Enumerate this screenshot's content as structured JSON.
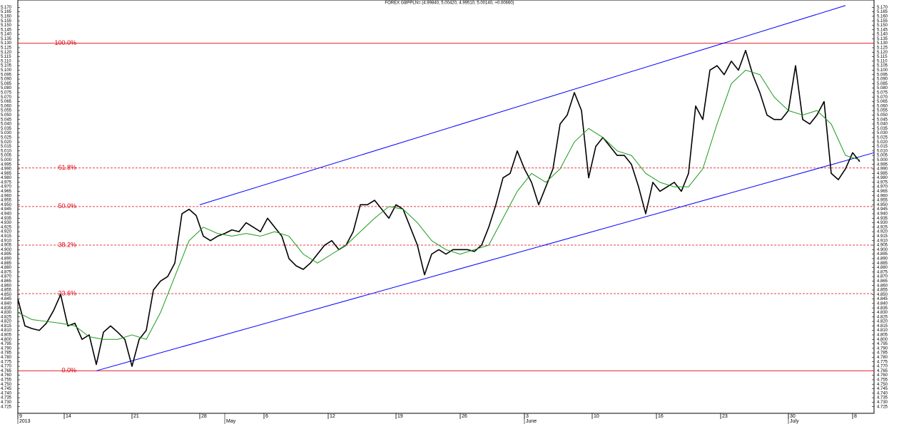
{
  "chart_data": {
    "type": "line",
    "title": "FOREX GBPPLN= (4.99840, 5.00420, 4.99510, 5.00140, +0.00660)",
    "xlim": [
      0,
      240
    ],
    "ylim": [
      4.72,
      5.175
    ],
    "xticks": [
      {
        "value": 0,
        "label": "9"
      },
      {
        "value": 13,
        "label": "14"
      },
      {
        "value": 32,
        "label": "21"
      },
      {
        "value": 51,
        "label": "28"
      },
      {
        "value": 69,
        "label": "6"
      },
      {
        "value": 87,
        "label": "12"
      },
      {
        "value": 106,
        "label": "19"
      },
      {
        "value": 124,
        "label": "26"
      },
      {
        "value": 142,
        "label": "3"
      },
      {
        "value": 161,
        "label": "10"
      },
      {
        "value": 179,
        "label": "16"
      },
      {
        "value": 197,
        "label": "23"
      },
      {
        "value": 216,
        "label": "30"
      },
      {
        "value": 234,
        "label": "8"
      }
    ],
    "period_labels": [
      {
        "value": 0,
        "label": "2013"
      },
      {
        "value": 58,
        "label": "May"
      },
      {
        "value": 142,
        "label": "June"
      },
      {
        "value": 216,
        "label": "July"
      }
    ],
    "yticks": [
      {
        "value": 4.725,
        "label": "4.725"
      },
      {
        "value": 4.73,
        "label": "4.730"
      },
      {
        "value": 4.735,
        "label": "4.735"
      },
      {
        "value": 4.74,
        "label": "4.740"
      },
      {
        "value": 4.745,
        "label": "4.745"
      },
      {
        "value": 4.75,
        "label": "4.750"
      },
      {
        "value": 4.755,
        "label": "4.755"
      },
      {
        "value": 4.76,
        "label": "4.760"
      },
      {
        "value": 4.765,
        "label": "4.765"
      },
      {
        "value": 4.77,
        "label": "4.770"
      },
      {
        "value": 4.775,
        "label": "4.775"
      },
      {
        "value": 4.78,
        "label": "4.780"
      },
      {
        "value": 4.785,
        "label": "4.785"
      },
      {
        "value": 4.79,
        "label": "4.790"
      },
      {
        "value": 4.795,
        "label": "4.795"
      },
      {
        "value": 4.8,
        "label": "4.800"
      },
      {
        "value": 4.805,
        "label": "4.805"
      },
      {
        "value": 4.81,
        "label": "4.810"
      },
      {
        "value": 4.815,
        "label": "4.815"
      },
      {
        "value": 4.82,
        "label": "4.820"
      },
      {
        "value": 4.825,
        "label": "4.825"
      },
      {
        "value": 4.83,
        "label": "4.830"
      },
      {
        "value": 4.835,
        "label": "4.835"
      },
      {
        "value": 4.84,
        "label": "4.840"
      },
      {
        "value": 4.845,
        "label": "4.845"
      },
      {
        "value": 4.85,
        "label": "4.850"
      },
      {
        "value": 4.855,
        "label": "4.855"
      },
      {
        "value": 4.86,
        "label": "4.860"
      },
      {
        "value": 4.865,
        "label": "4.865"
      },
      {
        "value": 4.87,
        "label": "4.870"
      },
      {
        "value": 4.875,
        "label": "4.875"
      },
      {
        "value": 4.88,
        "label": "4.880"
      },
      {
        "value": 4.885,
        "label": "4.885"
      },
      {
        "value": 4.89,
        "label": "4.890"
      },
      {
        "value": 4.895,
        "label": "4.895"
      },
      {
        "value": 4.9,
        "label": "4.900"
      },
      {
        "value": 4.905,
        "label": "4.905"
      },
      {
        "value": 4.91,
        "label": "4.910"
      },
      {
        "value": 4.915,
        "label": "4.915"
      },
      {
        "value": 4.92,
        "label": "4.920"
      },
      {
        "value": 4.925,
        "label": "4.925"
      },
      {
        "value": 4.93,
        "label": "4.930"
      },
      {
        "value": 4.935,
        "label": "4.935"
      },
      {
        "value": 4.94,
        "label": "4.940"
      },
      {
        "value": 4.945,
        "label": "4.945"
      },
      {
        "value": 4.95,
        "label": "4.950"
      },
      {
        "value": 4.955,
        "label": "4.955"
      },
      {
        "value": 4.96,
        "label": "4.960"
      },
      {
        "value": 4.965,
        "label": "4.965"
      },
      {
        "value": 4.97,
        "label": "4.970"
      },
      {
        "value": 4.975,
        "label": "4.975"
      },
      {
        "value": 4.98,
        "label": "4.980"
      },
      {
        "value": 4.985,
        "label": "4.985"
      },
      {
        "value": 4.99,
        "label": "4.990"
      },
      {
        "value": 4.995,
        "label": "4.995"
      },
      {
        "value": 5,
        "label": "5.000"
      },
      {
        "value": 5.005,
        "label": "5.005"
      },
      {
        "value": 5.01,
        "label": "5.010"
      },
      {
        "value": 5.015,
        "label": "5.015"
      },
      {
        "value": 5.02,
        "label": "5.020"
      },
      {
        "value": 5.025,
        "label": "5.025"
      },
      {
        "value": 5.03,
        "label": "5.030"
      },
      {
        "value": 5.035,
        "label": "5.035"
      },
      {
        "value": 5.04,
        "label": "5.040"
      },
      {
        "value": 5.045,
        "label": "5.045"
      },
      {
        "value": 5.05,
        "label": "5.050"
      },
      {
        "value": 5.055,
        "label": "5.055"
      },
      {
        "value": 5.06,
        "label": "5.060"
      },
      {
        "value": 5.065,
        "label": "5.065"
      },
      {
        "value": 5.07,
        "label": "5.070"
      },
      {
        "value": 5.075,
        "label": "5.075"
      },
      {
        "value": 5.08,
        "label": "5.080"
      },
      {
        "value": 5.085,
        "label": "5.085"
      },
      {
        "value": 5.09,
        "label": "5.090"
      },
      {
        "value": 5.095,
        "label": "5.095"
      },
      {
        "value": 5.1,
        "label": "5.100"
      },
      {
        "value": 5.105,
        "label": "5.105"
      },
      {
        "value": 5.11,
        "label": "5.110"
      },
      {
        "value": 5.115,
        "label": "5.115"
      },
      {
        "value": 5.12,
        "label": "5.120"
      },
      {
        "value": 5.125,
        "label": "5.125"
      },
      {
        "value": 5.13,
        "label": "5.130"
      },
      {
        "value": 5.135,
        "label": "5.135"
      },
      {
        "value": 5.14,
        "label": "5.140"
      },
      {
        "value": 5.145,
        "label": "5.145"
      },
      {
        "value": 5.15,
        "label": "5.150"
      },
      {
        "value": 5.155,
        "label": "5.155"
      },
      {
        "value": 5.16,
        "label": "5.160"
      },
      {
        "value": 5.165,
        "label": "5.165"
      },
      {
        "value": 5.17,
        "label": "5.170"
      }
    ],
    "fib_levels": [
      {
        "pct": 100,
        "label": "100.0%",
        "value": 5.13,
        "style": "solid"
      },
      {
        "pct": 61.8,
        "label": "61.8%",
        "value": 4.991,
        "style": "dashed"
      },
      {
        "pct": 50,
        "label": "50.0%",
        "value": 4.948,
        "style": "dashed"
      },
      {
        "pct": 38.2,
        "label": "38.2%",
        "value": 4.905,
        "style": "dashed"
      },
      {
        "pct": 23.6,
        "label": "23.6%",
        "value": 4.851,
        "style": "dashed"
      },
      {
        "pct": 0,
        "label": "0.0%",
        "value": 4.765,
        "style": "solid"
      }
    ],
    "fib_color": "#e0000f",
    "channel_color": "#0000ff",
    "channel_lines": [
      {
        "x": [
          51,
          232
        ],
        "values": [
          4.95,
          5.172
        ]
      },
      {
        "x": [
          22,
          240
        ],
        "values": [
          4.765,
          5.008
        ]
      }
    ],
    "series": [
      {
        "color": "#000000",
        "x": [
          0,
          2,
          4,
          6,
          8,
          10,
          12,
          14,
          16,
          18,
          20,
          22,
          24,
          26,
          28,
          30,
          32,
          34,
          36,
          38,
          40,
          42,
          44,
          46,
          48,
          50,
          52,
          54,
          56,
          58,
          60,
          62,
          64,
          66,
          68,
          70,
          72,
          74,
          76,
          78,
          80,
          82,
          84,
          86,
          88,
          90,
          92,
          94,
          96,
          98,
          100,
          102,
          104,
          106,
          108,
          110,
          112,
          114,
          116,
          118,
          120,
          122,
          124,
          126,
          128,
          130,
          132,
          134,
          136,
          138,
          140,
          142,
          144,
          146,
          148,
          150,
          152,
          154,
          156,
          158,
          160,
          162,
          164,
          166,
          168,
          170,
          172,
          174,
          176,
          178,
          180,
          182,
          184,
          186,
          188,
          190,
          192,
          194,
          196,
          198,
          200,
          202,
          204,
          206,
          208,
          210,
          212,
          214,
          216,
          218,
          220,
          222,
          224,
          226,
          228,
          230,
          232,
          234,
          236
        ],
        "values": [
          4.845,
          4.815,
          4.812,
          4.81,
          4.818,
          4.832,
          4.85,
          4.815,
          4.818,
          4.8,
          4.805,
          4.772,
          4.808,
          4.815,
          4.808,
          4.8,
          4.77,
          4.8,
          4.81,
          4.855,
          4.865,
          4.87,
          4.885,
          4.94,
          4.945,
          4.938,
          4.915,
          4.91,
          4.915,
          4.918,
          4.922,
          4.92,
          4.93,
          4.925,
          4.92,
          4.935,
          4.925,
          4.915,
          4.89,
          4.882,
          4.878,
          4.885,
          4.895,
          4.905,
          4.91,
          4.9,
          4.905,
          4.92,
          4.95,
          4.95,
          4.955,
          4.945,
          4.935,
          4.95,
          4.945,
          4.925,
          4.905,
          4.872,
          4.895,
          4.9,
          4.895,
          4.9,
          4.9,
          4.9,
          4.898,
          4.905,
          4.925,
          4.95,
          4.98,
          4.985,
          5.01,
          4.99,
          4.975,
          4.95,
          4.97,
          4.99,
          5.04,
          5.05,
          5.075,
          5.055,
          4.98,
          5.015,
          5.025,
          5.015,
          5.005,
          5.005,
          4.995,
          4.97,
          4.94,
          4.975,
          4.965,
          4.97,
          4.975,
          4.965,
          4.985,
          5.06,
          5.045,
          5.1,
          5.105,
          5.095,
          5.11,
          5.1,
          5.122,
          5.095,
          5.075,
          5.05,
          5.045,
          5.045,
          5.055,
          5.105,
          5.045,
          5.04,
          5.05,
          5.065,
          4.985,
          4.978,
          4.99,
          5.008,
          4.998
        ]
      },
      {
        "color": "#1a9a1a",
        "x": [
          0,
          4,
          8,
          12,
          16,
          20,
          24,
          28,
          32,
          36,
          40,
          44,
          48,
          52,
          56,
          60,
          64,
          68,
          72,
          76,
          80,
          84,
          88,
          92,
          96,
          100,
          104,
          108,
          112,
          116,
          120,
          124,
          128,
          132,
          136,
          140,
          144,
          148,
          152,
          156,
          160,
          164,
          168,
          172,
          176,
          180,
          184,
          188,
          192,
          196,
          200,
          204,
          208,
          212,
          216,
          220,
          224,
          228,
          232,
          236
        ],
        "values": [
          4.83,
          4.822,
          4.82,
          4.818,
          4.815,
          4.803,
          4.8,
          4.8,
          4.805,
          4.8,
          4.83,
          4.87,
          4.91,
          4.925,
          4.918,
          4.915,
          4.918,
          4.915,
          4.92,
          4.915,
          4.895,
          4.885,
          4.895,
          4.905,
          4.92,
          4.935,
          4.948,
          4.945,
          4.93,
          4.91,
          4.9,
          4.895,
          4.9,
          4.905,
          4.935,
          4.965,
          4.985,
          4.975,
          4.99,
          5.02,
          5.035,
          5.025,
          5.01,
          5.005,
          4.985,
          4.975,
          4.97,
          4.97,
          4.99,
          5.04,
          5.085,
          5.1,
          5.095,
          5.07,
          5.055,
          5.05,
          5.055,
          5.04,
          5.005,
          5
        ]
      }
    ]
  }
}
